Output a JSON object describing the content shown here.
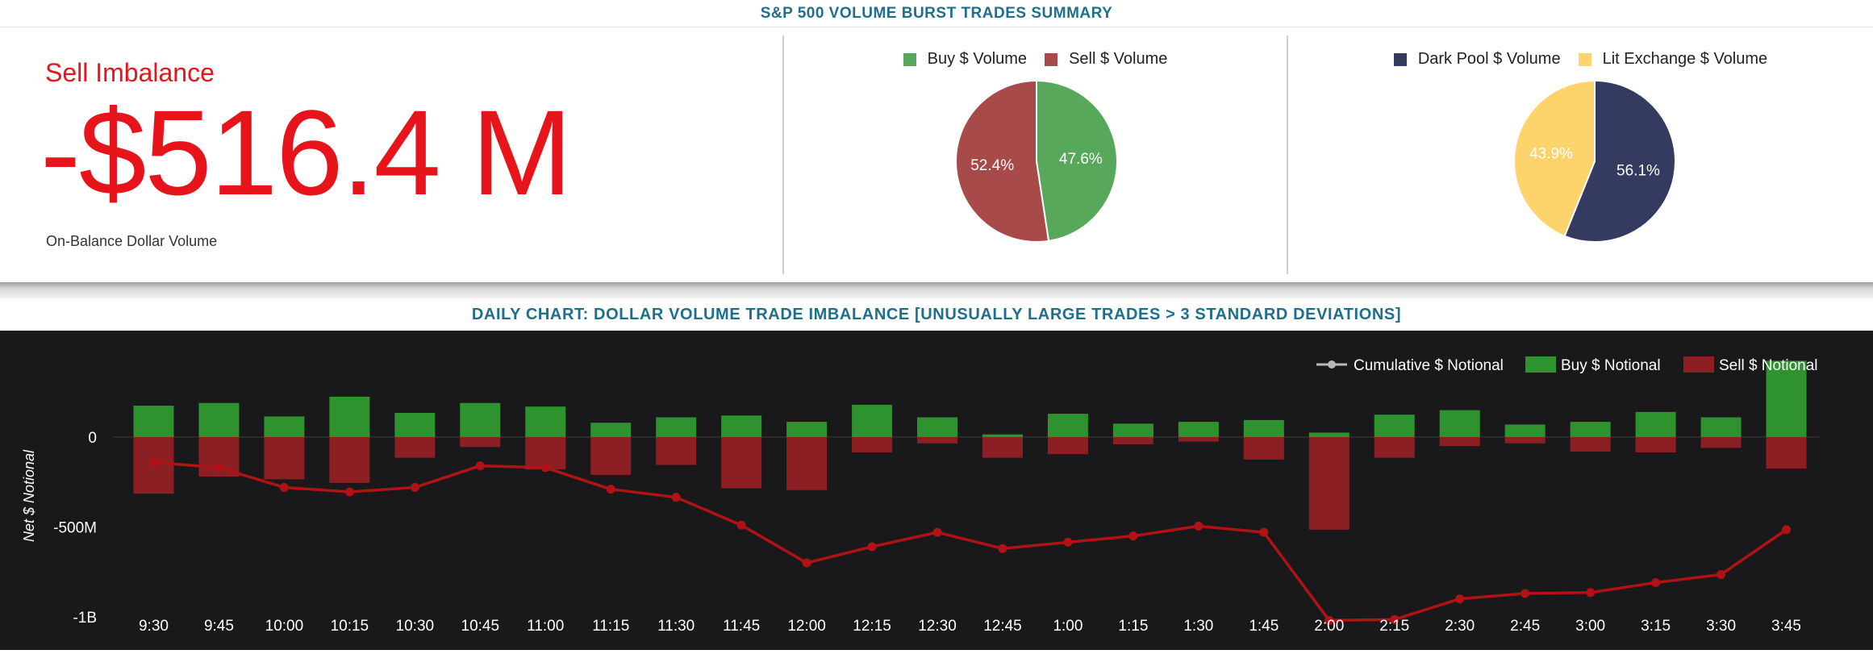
{
  "header": {
    "title": "S&P 500 VOLUME BURST TRADES SUMMARY"
  },
  "imbalance": {
    "label": "Sell Imbalance",
    "value": "-$516.4 M",
    "sublabel": "On-Balance Dollar Volume"
  },
  "colors": {
    "accent_red": "#e8141c",
    "title_blue": "#1d6f8c",
    "buy": "#57a85a",
    "sell": "#a84a4a",
    "dark_pool": "#353a61",
    "lit": "#fdd46b",
    "chart_bg": "#19191b",
    "buy_bar": "#2e922e",
    "sell_bar": "#8b1f24",
    "cum_line": "#b01216"
  },
  "chart_data": [
    {
      "type": "pie",
      "legend": [
        "Buy $ Volume",
        "Sell $ Volume"
      ],
      "slices": [
        {
          "name": "Buy $ Volume",
          "value": 47.6,
          "label": "47.6%"
        },
        {
          "name": "Sell $ Volume",
          "value": 52.4,
          "label": "52.4%"
        }
      ]
    },
    {
      "type": "pie",
      "legend": [
        "Dark Pool $ Volume",
        "Lit Exchange $ Volume"
      ],
      "slices": [
        {
          "name": "Dark Pool $ Volume",
          "value": 56.1,
          "label": "56.1%"
        },
        {
          "name": "Lit Exchange $ Volume",
          "value": 43.9,
          "label": "43.9%"
        }
      ]
    },
    {
      "type": "bar",
      "title": "DAILY CHART: DOLLAR VOLUME TRADE IMBALANCE [UNUSUALLY LARGE TRADES > 3 STANDARD DEVIATIONS]",
      "ylabel": "Net $ Notional",
      "ylim": [
        -1050,
        440
      ],
      "yticks": [
        {
          "value": 0,
          "label": "0"
        },
        {
          "value": -500,
          "label": "-500M"
        },
        {
          "value": -1000,
          "label": "-1B"
        }
      ],
      "legend_position": "top-right",
      "categories": [
        "9:30",
        "9:45",
        "10:00",
        "10:15",
        "10:30",
        "10:45",
        "11:00",
        "11:15",
        "11:30",
        "11:45",
        "12:00",
        "12:15",
        "12:30",
        "12:45",
        "1:00",
        "1:15",
        "1:30",
        "1:45",
        "2:00",
        "2:15",
        "2:30",
        "2:45",
        "3:00",
        "3:15",
        "3:30",
        "3:45"
      ],
      "series": [
        {
          "name": "Cumulative $ Notional",
          "kind": "line",
          "values": [
            -140,
            -170,
            -280,
            -305,
            -280,
            -160,
            -170,
            -290,
            -335,
            -490,
            -700,
            -610,
            -530,
            -620,
            -585,
            -550,
            -495,
            -530,
            -1020,
            -1015,
            -900,
            -870,
            -865,
            -810,
            -765,
            -515
          ]
        },
        {
          "name": "Buy $ Notional",
          "kind": "bar",
          "values": [
            175,
            190,
            115,
            225,
            135,
            190,
            170,
            80,
            110,
            120,
            85,
            180,
            110,
            15,
            130,
            75,
            85,
            95,
            25,
            125,
            150,
            70,
            85,
            140,
            110,
            425
          ]
        },
        {
          "name": "Sell $ Notional",
          "kind": "bar",
          "values": [
            -315,
            -220,
            -235,
            -255,
            -115,
            -55,
            -180,
            -210,
            -155,
            -285,
            -295,
            -85,
            -35,
            -115,
            -95,
            -40,
            -25,
            -125,
            -515,
            -115,
            -50,
            -35,
            -80,
            -85,
            -60,
            -175
          ]
        }
      ]
    }
  ]
}
